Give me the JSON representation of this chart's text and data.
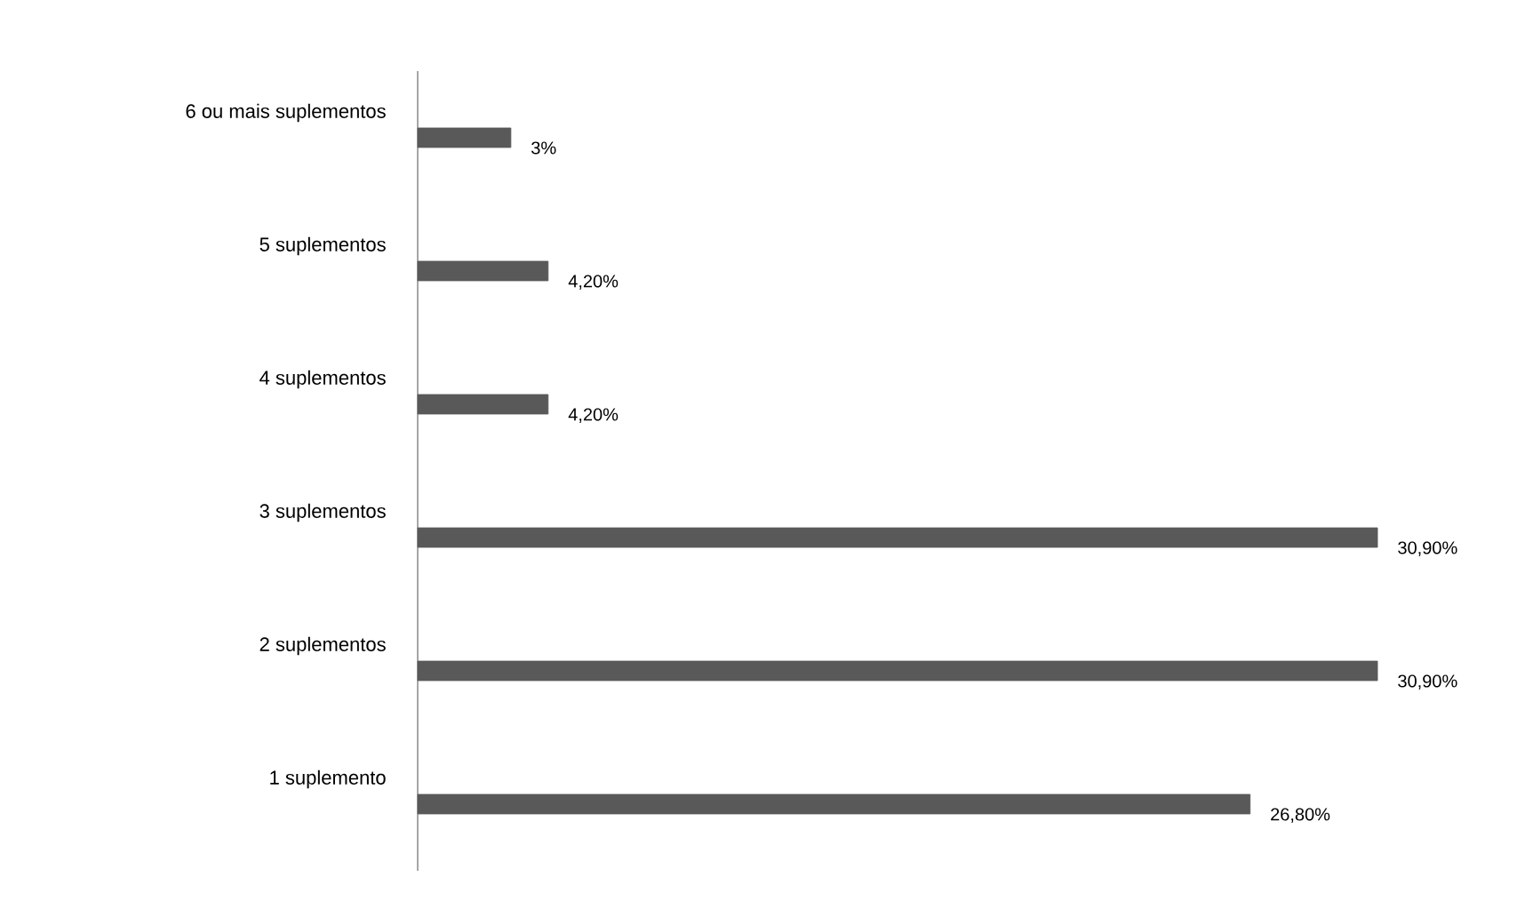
{
  "chart_data": {
    "type": "bar",
    "orientation": "horizontal",
    "categories": [
      "6 ou mais suplementos",
      "5 suplementos",
      "4 suplementos",
      "3 suplementos",
      "2 suplementos",
      "1 suplemento"
    ],
    "values": [
      3,
      4.2,
      4.2,
      30.9,
      30.9,
      26.8
    ],
    "value_labels": [
      "3%",
      "4,20%",
      "4,20%",
      "30,90%",
      "30,90%",
      "26,80%"
    ],
    "color": "#595959"
  }
}
